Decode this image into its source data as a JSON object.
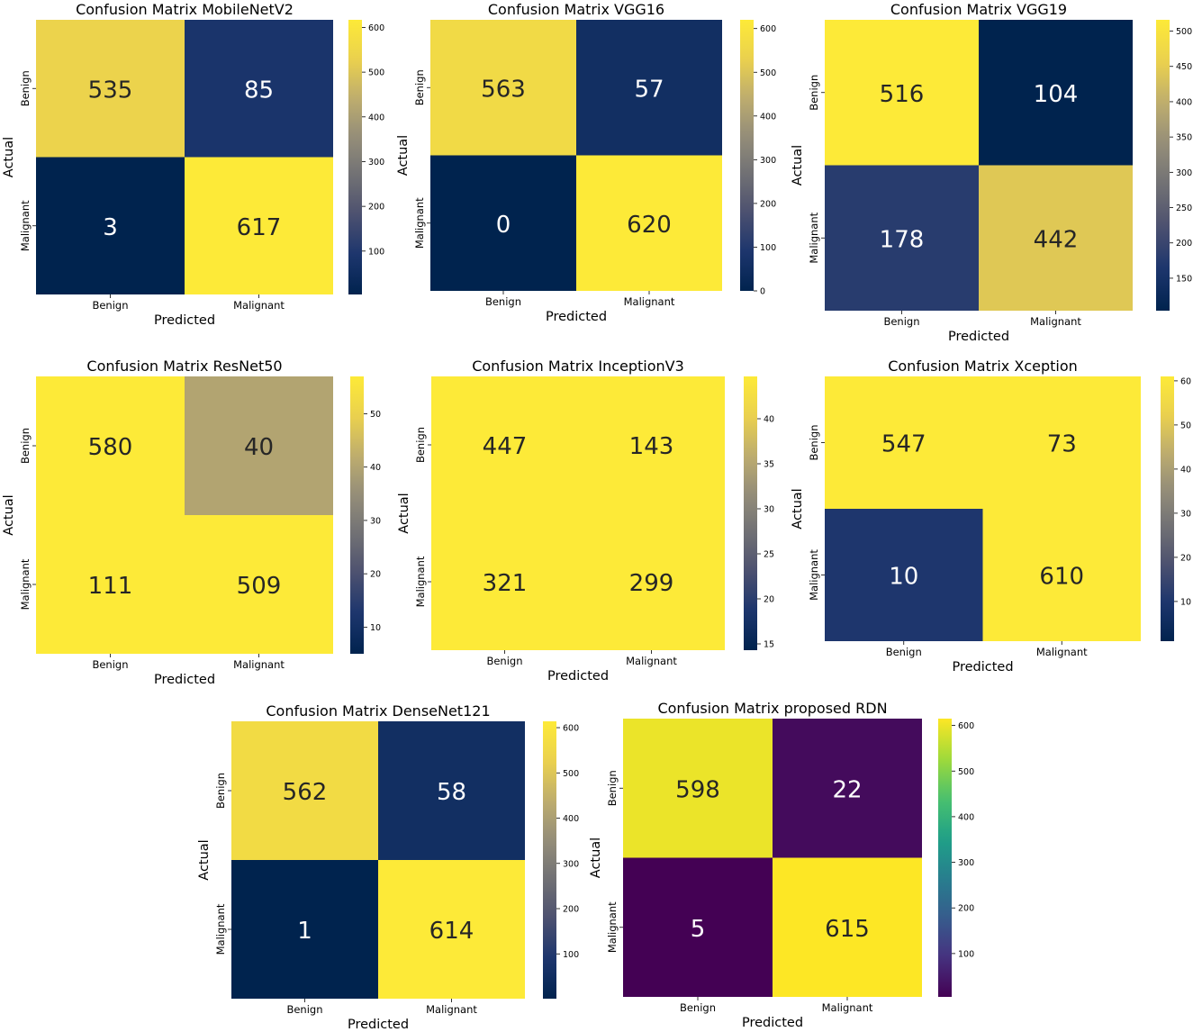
{
  "chart_data": [
    {
      "type": "heatmap",
      "title": "Confusion Matrix MobileNetV2",
      "xlabel": "Predicted",
      "ylabel": "Actual",
      "x_ticks": [
        "Benign",
        "Malignant"
      ],
      "y_ticks": [
        "Benign",
        "Malignant"
      ],
      "values": [
        [
          535,
          85
        ],
        [
          3,
          617
        ]
      ],
      "colormap": "cividis",
      "vmin": 3,
      "vmax": 617,
      "colorbar_ticks": [
        100,
        200,
        300,
        400,
        500,
        600
      ]
    },
    {
      "type": "heatmap",
      "title": "Confusion Matrix VGG16",
      "xlabel": "Predicted",
      "ylabel": "Actual",
      "x_ticks": [
        "Benign",
        "Malignant"
      ],
      "y_ticks": [
        "Benign",
        "Malignant"
      ],
      "values": [
        [
          563,
          57
        ],
        [
          0,
          620
        ]
      ],
      "colormap": "cividis",
      "vmin": 0,
      "vmax": 620,
      "colorbar_ticks": [
        0,
        100,
        200,
        300,
        400,
        500,
        600
      ]
    },
    {
      "type": "heatmap",
      "title": "Confusion Matrix VGG19",
      "xlabel": "Predicted",
      "ylabel": "Actual",
      "x_ticks": [
        "Benign",
        "Malignant"
      ],
      "y_ticks": [
        "Benign",
        "Malignant"
      ],
      "values": [
        [
          516,
          104
        ],
        [
          178,
          442
        ]
      ],
      "colormap": "cividis",
      "vmin": 104,
      "vmax": 516,
      "colorbar_ticks": [
        150,
        200,
        250,
        300,
        350,
        400,
        450,
        500
      ]
    },
    {
      "type": "heatmap",
      "title": "Confusion Matrix ResNet50",
      "xlabel": "Predicted",
      "ylabel": "Actual",
      "x_ticks": [
        "Benign",
        "Malignant"
      ],
      "y_ticks": [
        "Benign",
        "Malignant"
      ],
      "values": [
        [
          580,
          40
        ],
        [
          111,
          509
        ]
      ],
      "colormap": "cividis",
      "vmin": 5,
      "vmax": 57,
      "colorbar_ticks": [
        10,
        20,
        30,
        40,
        50
      ]
    },
    {
      "type": "heatmap",
      "title": "Confusion Matrix InceptionV3",
      "xlabel": "Predicted",
      "ylabel": "Actual",
      "x_ticks": [
        "Benign",
        "Malignant"
      ],
      "y_ticks": [
        "Benign",
        "Malignant"
      ],
      "values": [
        [
          447,
          143
        ],
        [
          321,
          299
        ]
      ],
      "colormap": "cividis",
      "vmin": 14.3,
      "vmax": 44.7,
      "colorbar_ticks": [
        15,
        20,
        25,
        30,
        35,
        40
      ]
    },
    {
      "type": "heatmap",
      "title": "Confusion Matrix Xception",
      "xlabel": "Predicted",
      "ylabel": "Actual",
      "x_ticks": [
        "Benign",
        "Malignant"
      ],
      "y_ticks": [
        "Benign",
        "Malignant"
      ],
      "values": [
        [
          547,
          73
        ],
        [
          10,
          610
        ]
      ],
      "colormap": "cividis",
      "vmin": 1,
      "vmax": 61,
      "colorbar_ticks": [
        10,
        20,
        30,
        40,
        50,
        60
      ]
    },
    {
      "type": "heatmap",
      "title": "Confusion Matrix DenseNet121",
      "xlabel": "Predicted",
      "ylabel": "Actual",
      "x_ticks": [
        "Benign",
        "Malignant"
      ],
      "y_ticks": [
        "Benign",
        "Malignant"
      ],
      "values": [
        [
          562,
          58
        ],
        [
          1,
          614
        ]
      ],
      "colormap": "cividis",
      "vmin": 1,
      "vmax": 614,
      "colorbar_ticks": [
        100,
        200,
        300,
        400,
        500,
        600
      ]
    },
    {
      "type": "heatmap",
      "title": "Confusion Matrix proposed RDN",
      "xlabel": "Predicted",
      "ylabel": "Actual",
      "x_ticks": [
        "Benign",
        "Malignant"
      ],
      "y_ticks": [
        "Benign",
        "Malignant"
      ],
      "values": [
        [
          598,
          22
        ],
        [
          5,
          615
        ]
      ],
      "colormap": "viridis",
      "vmin": 5,
      "vmax": 615,
      "colorbar_ticks": [
        100,
        200,
        300,
        400,
        500,
        600
      ]
    }
  ]
}
